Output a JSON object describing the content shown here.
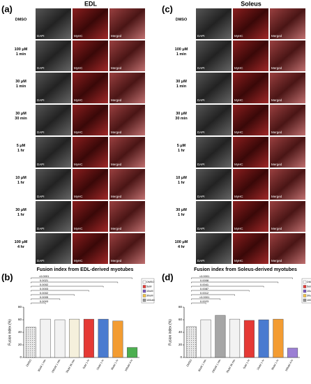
{
  "panels": [
    {
      "label": "(a)",
      "title": "EDL",
      "columns": [
        "DAPI",
        "MyHC",
        "Merged"
      ],
      "rows": [
        [
          "DMSO"
        ],
        [
          "100 μM",
          "1 min"
        ],
        [
          "30 μM",
          "1 min"
        ],
        [
          "30 μM",
          "30 min"
        ],
        [
          "5 μM",
          "1 hr"
        ],
        [
          "10 μM",
          "1 hr"
        ],
        [
          "30 μM",
          "1 hr"
        ],
        [
          "100 μM",
          "4 hr"
        ]
      ]
    },
    {
      "label": "(c)",
      "title": "Soleus",
      "columns": [
        "DAPI",
        "MyHC",
        "Merged"
      ],
      "rows": [
        [
          "DMSO"
        ],
        [
          "100 μM",
          "1 min"
        ],
        [
          "30 μM",
          "1 min"
        ],
        [
          "30 μM",
          "30 min"
        ],
        [
          "5 μM",
          "1 hr"
        ],
        [
          "10 μM",
          "1 hr"
        ],
        [
          "30 μM",
          "1 hr"
        ],
        [
          "100 μM",
          "4 hr"
        ]
      ]
    }
  ],
  "chart_data": [
    {
      "type": "bar",
      "label": "(b)",
      "title": "Fusion index from EDL-derived myotubes",
      "y_label": "Fusion index (%)",
      "categories": [
        "DMSO",
        "30uM 1 min",
        "100uM 1 min",
        "30uM 30 min",
        "5uM 1 hr",
        "10uM 1 hr",
        "30uM 1 hr",
        "100uM 4 hr"
      ],
      "values": [
        48,
        61,
        60,
        61,
        61,
        61,
        58,
        16
      ],
      "colors": [
        "#d9d9d9",
        "#f2f2f2",
        "#f2f2f2",
        "#f5f0dc",
        "#e53935",
        "#4a7bd0",
        "#f39c32",
        "#4caf50"
      ],
      "ylim": [
        0,
        80
      ],
      "yticks": [
        0,
        20,
        40,
        60,
        80
      ],
      "comparisons": [
        "0.0003",
        "0.0005",
        "0.0002",
        "0.0003",
        "0.0002",
        "0.0021",
        "<0.0001"
      ],
      "legend": [
        {
          "name": "DMSO",
          "color": "#ffffff"
        },
        {
          "name": "5uM",
          "color": "#e53935"
        },
        {
          "name": "10uM",
          "color": "#7c5cc4"
        },
        {
          "name": "30uM",
          "color": "#f5c542"
        },
        {
          "name": "100uM",
          "color": "#999999"
        }
      ]
    },
    {
      "type": "bar",
      "label": "(d)",
      "title": "Fusion index from Soleus-derived myotubes",
      "y_label": "Fusion index (%)",
      "categories": [
        "DMSO",
        "30uM 1 min",
        "100uM 1 min",
        "30uM 30 min",
        "5uM 1 hr",
        "10uM 1 hr",
        "30uM 1 hr",
        "100uM 4 hr"
      ],
      "values": [
        49,
        60,
        67,
        61,
        59,
        60,
        61,
        15
      ],
      "colors": [
        "#d9d9d9",
        "#f2f2f2",
        "#a6a6a6",
        "#f2f2f2",
        "#e53935",
        "#4a7bd0",
        "#f39c32",
        "#9b7fd4"
      ],
      "ylim": [
        0,
        80
      ],
      "yticks": [
        0,
        20,
        40,
        60,
        80
      ],
      "comparisons": [
        "0.0023",
        "<0.0001",
        "0.0012",
        "0.0087",
        "0.0041",
        "0.0008",
        "<0.0001"
      ],
      "legend": [
        {
          "name": "DMSO",
          "color": "#ffffff"
        },
        {
          "name": "5uM",
          "color": "#e53935"
        },
        {
          "name": "10uM",
          "color": "#7c5cc4"
        },
        {
          "name": "30uM",
          "color": "#f5c542"
        },
        {
          "name": "100uM",
          "color": "#999999"
        }
      ]
    }
  ]
}
